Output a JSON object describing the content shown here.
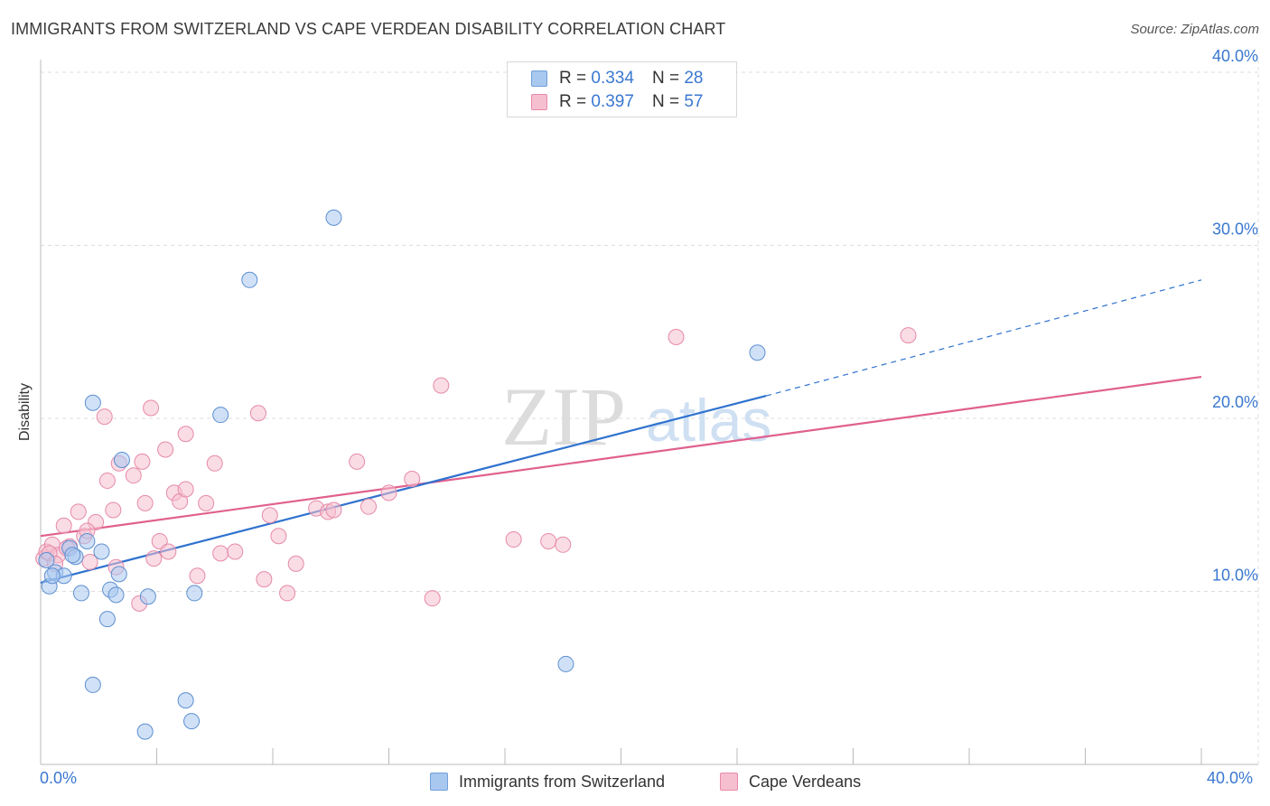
{
  "title": "IMMIGRANTS FROM SWITZERLAND VS CAPE VERDEAN DISABILITY CORRELATION CHART",
  "source": "Source: ZipAtlas.com",
  "watermark": {
    "zip": "ZIP",
    "atlas": "atlas"
  },
  "legend_top": {
    "rows": [
      {
        "r_label": "R =",
        "r_value": "0.334",
        "n_label": "N =",
        "n_value": "28",
        "color": "#a9c8f0",
        "border": "#6f9fd8"
      },
      {
        "r_label": "R =",
        "r_value": "0.397",
        "n_label": "N =",
        "n_value": "57",
        "color": "#f6bfd0",
        "border": "#e88aa8"
      }
    ]
  },
  "legend_bottom": [
    {
      "label": "Immigrants from Switzerland",
      "color": "#a9c8f0",
      "border": "#6f9fd8"
    },
    {
      "label": "Cape Verdeans",
      "color": "#f6bfd0",
      "border": "#e88aa8"
    }
  ],
  "colors": {
    "blue_line": "#2f72cf",
    "pink_line": "#e0608e",
    "tick_text": "#3a78d0",
    "grid": "#dddddd"
  },
  "chart_data": {
    "type": "scatter",
    "xlabel": "",
    "ylabel": "Disability",
    "xlim": [
      0,
      40
    ],
    "ylim": [
      0,
      40
    ],
    "x_tick_labels": [
      "0.0%",
      "40.0%"
    ],
    "y_ticks": [
      10,
      20,
      30,
      40
    ],
    "y_tick_labels": [
      "10.0%",
      "20.0%",
      "30.0%",
      "40.0%"
    ],
    "grid": true,
    "legend_position": "top-center",
    "series": [
      {
        "name": "Immigrants from Switzerland",
        "color": "#a9c8f0",
        "points": [
          [
            0.2,
            11.8
          ],
          [
            0.3,
            10.3
          ],
          [
            0.5,
            11.1
          ],
          [
            0.8,
            10.9
          ],
          [
            1.0,
            12.5
          ],
          [
            1.2,
            12.0
          ],
          [
            1.4,
            9.9
          ],
          [
            1.6,
            12.9
          ],
          [
            1.8,
            20.9
          ],
          [
            2.1,
            12.3
          ],
          [
            2.3,
            8.4
          ],
          [
            2.4,
            10.1
          ],
          [
            2.6,
            9.8
          ],
          [
            2.7,
            11.0
          ],
          [
            1.8,
            4.6
          ],
          [
            2.8,
            17.6
          ],
          [
            3.6,
            1.9
          ],
          [
            3.7,
            9.7
          ],
          [
            5.0,
            3.7
          ],
          [
            5.2,
            2.5
          ],
          [
            5.3,
            9.9
          ],
          [
            6.2,
            20.2
          ],
          [
            7.2,
            28.0
          ],
          [
            10.1,
            31.6
          ],
          [
            18.1,
            5.8
          ],
          [
            24.7,
            23.8
          ],
          [
            0.4,
            10.9
          ],
          [
            1.1,
            12.1
          ]
        ]
      },
      {
        "name": "Cape Verdeans",
        "color": "#f6bfd0",
        "points": [
          [
            0.1,
            11.9
          ],
          [
            0.2,
            12.3
          ],
          [
            0.4,
            12.7
          ],
          [
            0.6,
            12.1
          ],
          [
            0.8,
            13.8
          ],
          [
            1.0,
            12.6
          ],
          [
            1.3,
            14.6
          ],
          [
            1.5,
            13.2
          ],
          [
            1.7,
            11.7
          ],
          [
            1.9,
            14.0
          ],
          [
            2.2,
            20.1
          ],
          [
            2.3,
            16.4
          ],
          [
            2.5,
            14.7
          ],
          [
            2.7,
            17.4
          ],
          [
            3.2,
            16.7
          ],
          [
            3.4,
            9.3
          ],
          [
            3.6,
            15.1
          ],
          [
            3.8,
            20.6
          ],
          [
            3.9,
            11.9
          ],
          [
            4.1,
            12.9
          ],
          [
            4.3,
            18.2
          ],
          [
            4.4,
            12.3
          ],
          [
            4.6,
            15.7
          ],
          [
            4.8,
            15.2
          ],
          [
            5.0,
            19.1
          ],
          [
            5.4,
            10.9
          ],
          [
            5.7,
            15.1
          ],
          [
            6.0,
            17.4
          ],
          [
            6.2,
            12.2
          ],
          [
            6.7,
            12.3
          ],
          [
            7.5,
            20.3
          ],
          [
            7.7,
            10.7
          ],
          [
            7.9,
            14.4
          ],
          [
            8.2,
            13.2
          ],
          [
            8.5,
            9.9
          ],
          [
            8.8,
            11.6
          ],
          [
            9.5,
            14.8
          ],
          [
            9.9,
            14.6
          ],
          [
            10.1,
            14.7
          ],
          [
            10.9,
            17.5
          ],
          [
            11.3,
            14.9
          ],
          [
            12.0,
            15.7
          ],
          [
            12.8,
            16.5
          ],
          [
            13.5,
            9.6
          ],
          [
            13.8,
            21.9
          ],
          [
            16.3,
            13.0
          ],
          [
            17.5,
            12.9
          ],
          [
            18.0,
            12.7
          ],
          [
            21.9,
            24.7
          ],
          [
            29.9,
            24.8
          ],
          [
            0.3,
            12.2
          ],
          [
            0.9,
            12.5
          ],
          [
            1.6,
            13.5
          ],
          [
            2.6,
            11.4
          ],
          [
            3.5,
            17.5
          ],
          [
            5.0,
            15.9
          ],
          [
            0.5,
            11.6
          ]
        ]
      }
    ],
    "trend_lines": [
      {
        "series": "Immigrants from Switzerland",
        "x": [
          0,
          25
        ],
        "y": [
          10.5,
          21.3
        ],
        "dashed_extension_to": [
          40,
          28.0
        ]
      },
      {
        "series": "Cape Verdeans",
        "x": [
          0,
          40
        ],
        "y": [
          13.2,
          22.4
        ]
      }
    ]
  }
}
